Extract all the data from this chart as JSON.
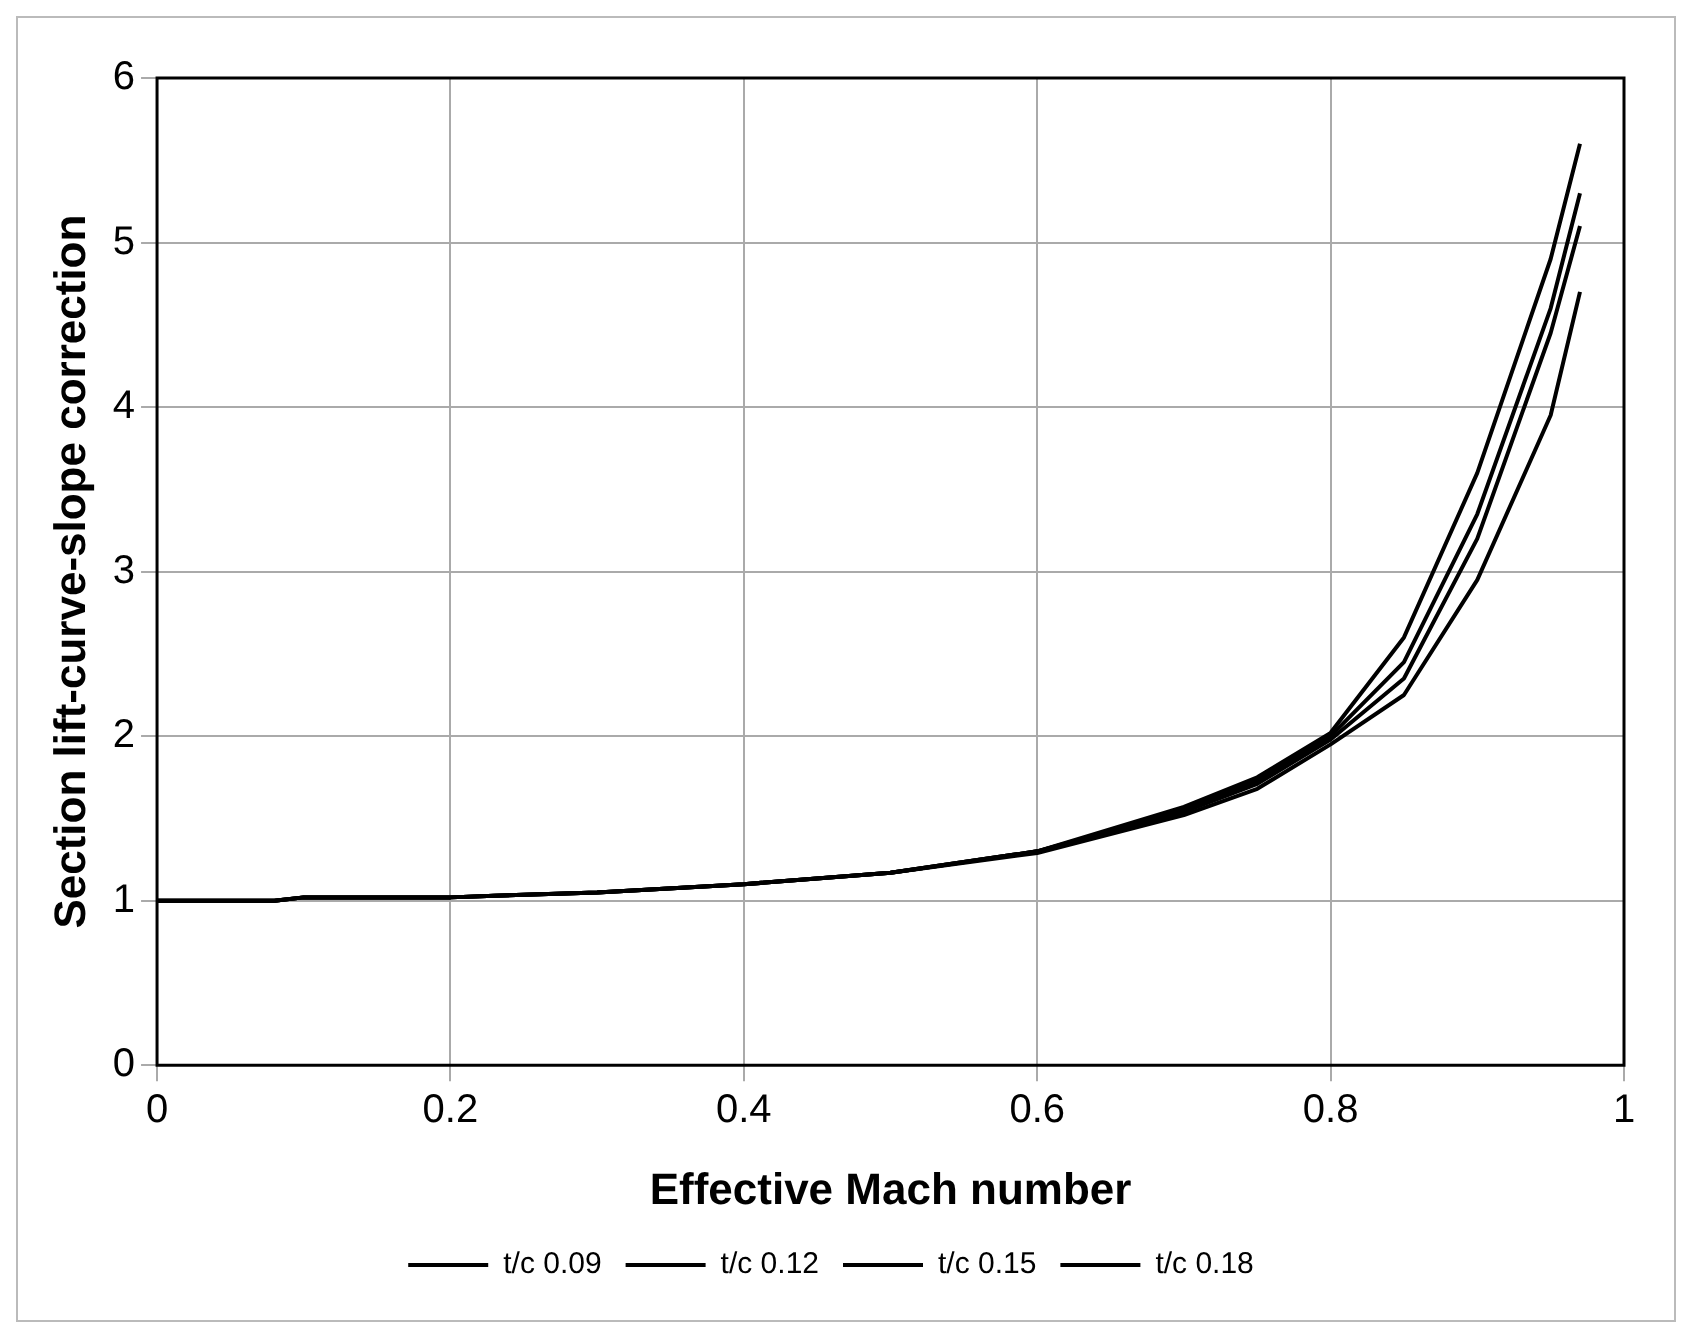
{
  "chart_data": {
    "type": "line",
    "xlabel": "Effective Mach number",
    "ylabel": "Section lift-curve-slope correction",
    "xlim": [
      0,
      1
    ],
    "ylim": [
      0,
      6
    ],
    "xticks": [
      0,
      0.2,
      0.4,
      0.6,
      0.8,
      1
    ],
    "yticks": [
      0,
      1,
      2,
      3,
      4,
      5,
      6
    ],
    "grid": true,
    "legend": "bottom",
    "marker": "none",
    "line_style": "solid",
    "x": [
      0,
      0.08,
      0.1,
      0.2,
      0.23,
      0.3,
      0.4,
      0.5,
      0.6,
      0.7,
      0.75,
      0.8,
      0.85,
      0.9,
      0.95,
      0.97
    ],
    "series": [
      {
        "name": "t/c 0.09",
        "color": "#000000",
        "values": [
          1,
          1,
          1.02,
          1.02,
          1.03,
          1.05,
          1.1,
          1.17,
          1.3,
          1.57,
          1.75,
          2.02,
          2.6,
          3.6,
          4.9,
          5.6
        ]
      },
      {
        "name": "t/c 0.12",
        "color": "#000000",
        "values": [
          1,
          1,
          1.02,
          1.02,
          1.03,
          1.05,
          1.1,
          1.17,
          1.3,
          1.55,
          1.73,
          2.0,
          2.45,
          3.35,
          4.6,
          5.3
        ]
      },
      {
        "name": "t/c 0.15",
        "color": "#000000",
        "values": [
          1,
          1,
          1.02,
          1.02,
          1.03,
          1.05,
          1.1,
          1.17,
          1.3,
          1.54,
          1.71,
          1.98,
          2.35,
          3.2,
          4.45,
          5.1
        ]
      },
      {
        "name": "t/c 0.18",
        "color": "#000000",
        "values": [
          1,
          1,
          1.02,
          1.02,
          1.03,
          1.05,
          1.1,
          1.17,
          1.29,
          1.52,
          1.68,
          1.95,
          2.25,
          2.95,
          3.95,
          4.7
        ]
      }
    ]
  }
}
